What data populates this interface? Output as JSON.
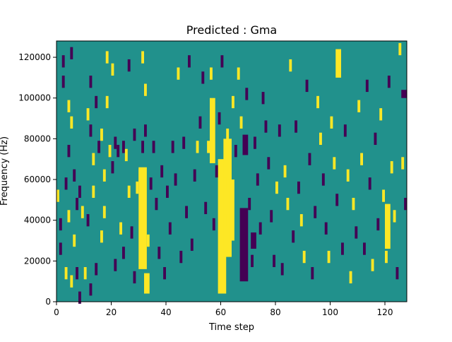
{
  "chart_data": {
    "type": "heatmap",
    "title": "Predicted : Gma",
    "xlabel": "Time step",
    "ylabel": "Frequency (Hz)",
    "xlim": [
      0,
      128
    ],
    "ylim": [
      0,
      128000
    ],
    "x_ticks": [
      0,
      20,
      40,
      60,
      80,
      100,
      120
    ],
    "y_ticks": [
      0,
      20000,
      40000,
      60000,
      80000,
      100000,
      120000
    ],
    "x_tick_labels": [
      "0",
      "20",
      "40",
      "60",
      "80",
      "100",
      "120"
    ],
    "y_tick_labels": [
      "0",
      "20000",
      "40000",
      "60000",
      "80000",
      "100000",
      "120000"
    ],
    "colormap": "viridis",
    "background_value": 0,
    "values_legend": {
      "-1": "#440154",
      "0": "#21918c",
      "1": "#fde725"
    },
    "grid": false,
    "cells": [
      {
        "t": 0.5,
        "f": 52000,
        "v": 1
      },
      {
        "t": 1.5,
        "f": 38000,
        "v": -1
      },
      {
        "t": 1.5,
        "f": 26000,
        "v": -1
      },
      {
        "t": 2.5,
        "f": 118000,
        "v": -1
      },
      {
        "t": 2.5,
        "f": 108000,
        "v": -1
      },
      {
        "t": 3.5,
        "f": 58000,
        "v": -1
      },
      {
        "t": 3.5,
        "f": 14000,
        "v": 1
      },
      {
        "t": 4.5,
        "f": 96000,
        "v": 1
      },
      {
        "t": 4.5,
        "f": 74000,
        "v": -1
      },
      {
        "t": 4.5,
        "f": 42000,
        "v": 1
      },
      {
        "t": 5.5,
        "f": 122000,
        "v": -1
      },
      {
        "t": 5.5,
        "f": 88000,
        "v": 1
      },
      {
        "t": 5.5,
        "f": 10000,
        "v": 1
      },
      {
        "t": 6.5,
        "f": 62000,
        "v": -1
      },
      {
        "t": 6.5,
        "f": 30000,
        "v": 1
      },
      {
        "t": 7.5,
        "f": 48000,
        "v": -1
      },
      {
        "t": 7.5,
        "f": 14000,
        "v": -1
      },
      {
        "t": 8.5,
        "f": 54000,
        "v": -1
      },
      {
        "t": 8.5,
        "f": 2000,
        "v": -1
      },
      {
        "t": 9.5,
        "f": 44000,
        "v": 1
      },
      {
        "t": 10.5,
        "f": 14000,
        "v": 1
      },
      {
        "t": 11.5,
        "f": 92000,
        "v": 1
      },
      {
        "t": 11.5,
        "f": 40000,
        "v": -1
      },
      {
        "t": 12.5,
        "f": 108000,
        "v": -1
      },
      {
        "t": 12.5,
        "f": 84000,
        "v": -1
      },
      {
        "t": 12.5,
        "f": 6000,
        "v": -1
      },
      {
        "t": 13.5,
        "f": 70000,
        "v": 1
      },
      {
        "t": 13.5,
        "f": 54000,
        "v": 1
      },
      {
        "t": 14.5,
        "f": 98000,
        "v": -1
      },
      {
        "t": 14.5,
        "f": 16000,
        "v": -1
      },
      {
        "t": 15.5,
        "f": 76000,
        "v": -1
      },
      {
        "t": 16.5,
        "f": 82000,
        "v": 1
      },
      {
        "t": 16.5,
        "f": 32000,
        "v": 1
      },
      {
        "t": 17.5,
        "f": 62000,
        "v": 1
      },
      {
        "t": 17.5,
        "f": 44000,
        "v": 1
      },
      {
        "t": 18.5,
        "f": 120000,
        "v": 1
      },
      {
        "t": 18.5,
        "f": 98000,
        "v": 1
      },
      {
        "t": 19.5,
        "f": 74000,
        "v": 1
      },
      {
        "t": 20.5,
        "f": 114000,
        "v": 1
      },
      {
        "t": 20.5,
        "f": 66000,
        "v": -1
      },
      {
        "t": 21.5,
        "f": 78000,
        "v": -1
      },
      {
        "t": 21.5,
        "f": 18000,
        "v": -1
      },
      {
        "t": 22.5,
        "f": 74000,
        "v": -1
      },
      {
        "t": 23.5,
        "f": 36000,
        "v": 1
      },
      {
        "t": 24.5,
        "f": 76000,
        "v": -1
      },
      {
        "t": 24.5,
        "f": 24000,
        "v": -1
      },
      {
        "t": 25.5,
        "f": 72000,
        "v": 1
      },
      {
        "t": 26.5,
        "f": 116000,
        "v": -1
      },
      {
        "t": 26.5,
        "f": 54000,
        "v": 1
      },
      {
        "t": 27.5,
        "f": 34000,
        "v": -1
      },
      {
        "t": 28.5,
        "f": 82000,
        "v": -1
      },
      {
        "t": 28.5,
        "f": 12000,
        "v": -1
      },
      {
        "t": 29.5,
        "f": 56000,
        "v": 1
      },
      {
        "t": 30.5,
        "f": 62000,
        "v": 1
      },
      {
        "t": 31.5,
        "f": 120000,
        "v": 1
      },
      {
        "t": 31.5,
        "f": 76000,
        "v": -1
      },
      {
        "t": 32.5,
        "f": 104000,
        "v": 1
      },
      {
        "t": 32.5,
        "f": 84000,
        "v": -1
      },
      {
        "t": 33.5,
        "f": 30000,
        "v": 1
      },
      {
        "t": 34.5,
        "f": 58000,
        "v": -1
      },
      {
        "t": 35.5,
        "f": 76000,
        "v": -1
      },
      {
        "t": 36.5,
        "f": 48000,
        "v": -1
      },
      {
        "t": 37.5,
        "f": 24000,
        "v": -1
      },
      {
        "t": 38.5,
        "f": 64000,
        "v": -1
      },
      {
        "t": 39.5,
        "f": 14000,
        "v": -1
      },
      {
        "t": 40.5,
        "f": 54000,
        "v": -1
      },
      {
        "t": 41.5,
        "f": 36000,
        "v": -1
      },
      {
        "t": 42.5,
        "f": 76000,
        "v": -1
      },
      {
        "t": 43.5,
        "f": 60000,
        "v": -1
      },
      {
        "t": 44.5,
        "f": 112000,
        "v": 1
      },
      {
        "t": 45.5,
        "f": 22000,
        "v": -1
      },
      {
        "t": 46.5,
        "f": 78000,
        "v": -1
      },
      {
        "t": 47.5,
        "f": 44000,
        "v": -1
      },
      {
        "t": 48.5,
        "f": 118000,
        "v": -1
      },
      {
        "t": 49.5,
        "f": 28000,
        "v": -1
      },
      {
        "t": 50.5,
        "f": 62000,
        "v": -1
      },
      {
        "t": 51.5,
        "f": 76000,
        "v": 1
      },
      {
        "t": 52.5,
        "f": 88000,
        "v": -1
      },
      {
        "t": 53.5,
        "f": 110000,
        "v": -1
      },
      {
        "t": 54.5,
        "f": 46000,
        "v": -1
      },
      {
        "t": 55.5,
        "f": 76000,
        "v": 1
      },
      {
        "t": 56.5,
        "f": 112000,
        "v": 1
      },
      {
        "t": 57.5,
        "f": 38000,
        "v": -1
      },
      {
        "t": 58.5,
        "f": 64000,
        "v": -1
      },
      {
        "t": 59.5,
        "f": 90000,
        "v": -1
      },
      {
        "t": 60.5,
        "f": 118000,
        "v": -1
      },
      {
        "t": 61.5,
        "f": 58000,
        "v": 1
      },
      {
        "t": 61.5,
        "f": 40000,
        "v": 1
      },
      {
        "t": 62.5,
        "f": 82000,
        "v": 1
      },
      {
        "t": 63.5,
        "f": 50000,
        "v": 1
      },
      {
        "t": 64.5,
        "f": 98000,
        "v": 1
      },
      {
        "t": 65.5,
        "f": 74000,
        "v": -1
      },
      {
        "t": 66.5,
        "f": 112000,
        "v": 1
      },
      {
        "t": 67.5,
        "f": 88000,
        "v": 1
      },
      {
        "t": 68.5,
        "f": 30000,
        "v": -1
      },
      {
        "t": 69.5,
        "f": 102000,
        "v": -1
      },
      {
        "t": 70.5,
        "f": 48000,
        "v": -1
      },
      {
        "t": 71.5,
        "f": 20000,
        "v": -1
      },
      {
        "t": 72.5,
        "f": 78000,
        "v": -1
      },
      {
        "t": 73.5,
        "f": 60000,
        "v": -1
      },
      {
        "t": 74.5,
        "f": 36000,
        "v": -1
      },
      {
        "t": 75.5,
        "f": 100000,
        "v": -1
      },
      {
        "t": 76.5,
        "f": 86000,
        "v": -1
      },
      {
        "t": 77.5,
        "f": 68000,
        "v": -1
      },
      {
        "t": 78.5,
        "f": 42000,
        "v": -1
      },
      {
        "t": 79.5,
        "f": 20000,
        "v": -1
      },
      {
        "t": 80.5,
        "f": 56000,
        "v": 1
      },
      {
        "t": 81.5,
        "f": 84000,
        "v": -1
      },
      {
        "t": 82.5,
        "f": 16000,
        "v": -1
      },
      {
        "t": 83.5,
        "f": 64000,
        "v": 1
      },
      {
        "t": 84.5,
        "f": 48000,
        "v": 1
      },
      {
        "t": 85.5,
        "f": 116000,
        "v": 1
      },
      {
        "t": 86.5,
        "f": 32000,
        "v": -1
      },
      {
        "t": 87.5,
        "f": 86000,
        "v": -1
      },
      {
        "t": 88.5,
        "f": 56000,
        "v": -1
      },
      {
        "t": 89.5,
        "f": 40000,
        "v": 1
      },
      {
        "t": 90.5,
        "f": 22000,
        "v": 1
      },
      {
        "t": 91.5,
        "f": 106000,
        "v": -1
      },
      {
        "t": 92.5,
        "f": 70000,
        "v": -1
      },
      {
        "t": 93.5,
        "f": 14000,
        "v": -1
      },
      {
        "t": 94.5,
        "f": 44000,
        "v": -1
      },
      {
        "t": 95.5,
        "f": 98000,
        "v": 1
      },
      {
        "t": 96.5,
        "f": 80000,
        "v": 1
      },
      {
        "t": 97.5,
        "f": 60000,
        "v": -1
      },
      {
        "t": 98.5,
        "f": 36000,
        "v": -1
      },
      {
        "t": 99.5,
        "f": 22000,
        "v": 1
      },
      {
        "t": 100.5,
        "f": 88000,
        "v": 1
      },
      {
        "t": 101.5,
        "f": 68000,
        "v": 1
      },
      {
        "t": 102.5,
        "f": 50000,
        "v": -1
      },
      {
        "t": 103.5,
        "f": 118000,
        "v": 1
      },
      {
        "t": 104.5,
        "f": 26000,
        "v": -1
      },
      {
        "t": 105.5,
        "f": 84000,
        "v": -1
      },
      {
        "t": 106.5,
        "f": 62000,
        "v": 1
      },
      {
        "t": 107.5,
        "f": 12000,
        "v": 1
      },
      {
        "t": 108.5,
        "f": 48000,
        "v": 1
      },
      {
        "t": 109.5,
        "f": 34000,
        "v": -1
      },
      {
        "t": 110.5,
        "f": 96000,
        "v": 1
      },
      {
        "t": 111.5,
        "f": 70000,
        "v": 1
      },
      {
        "t": 112.5,
        "f": 26000,
        "v": -1
      },
      {
        "t": 113.5,
        "f": 106000,
        "v": -1
      },
      {
        "t": 114.5,
        "f": 58000,
        "v": -1
      },
      {
        "t": 115.5,
        "f": 18000,
        "v": 1
      },
      {
        "t": 116.5,
        "f": 80000,
        "v": -1
      },
      {
        "t": 117.5,
        "f": 38000,
        "v": -1
      },
      {
        "t": 118.5,
        "f": 92000,
        "v": 1
      },
      {
        "t": 119.5,
        "f": 52000,
        "v": 1
      },
      {
        "t": 120.5,
        "f": 22000,
        "v": 1
      },
      {
        "t": 121.5,
        "f": 108000,
        "v": -1
      },
      {
        "t": 122.5,
        "f": 66000,
        "v": 1
      },
      {
        "t": 123.5,
        "f": 42000,
        "v": 1
      },
      {
        "t": 124.5,
        "f": 14000,
        "v": -1
      },
      {
        "t": 125.5,
        "f": 124000,
        "v": 1
      },
      {
        "t": 126.5,
        "f": 68000,
        "v": 1
      },
      {
        "t": 127.5,
        "f": 48000,
        "v": -1
      }
    ],
    "bands": [
      {
        "t0": 30,
        "t1": 33,
        "f0": 16000,
        "f1": 66000,
        "v": 1
      },
      {
        "t0": 32,
        "t1": 34,
        "f0": 4000,
        "f1": 14000,
        "v": 1
      },
      {
        "t0": 56,
        "t1": 58,
        "f0": 68000,
        "f1": 100000,
        "v": 1
      },
      {
        "t0": 59,
        "t1": 62,
        "f0": 4000,
        "f1": 70000,
        "v": 1
      },
      {
        "t0": 61,
        "t1": 64,
        "f0": 22000,
        "f1": 80000,
        "v": 1
      },
      {
        "t0": 63,
        "t1": 65,
        "f0": 30000,
        "f1": 60000,
        "v": 1
      },
      {
        "t0": 67,
        "t1": 70,
        "f0": 10000,
        "f1": 46000,
        "v": -1
      },
      {
        "t0": 68,
        "t1": 70,
        "f0": 72000,
        "f1": 82000,
        "v": -1
      },
      {
        "t0": 71,
        "t1": 73,
        "f0": 26000,
        "f1": 34000,
        "v": -1
      },
      {
        "t0": 102,
        "t1": 104,
        "f0": 110000,
        "f1": 124000,
        "v": 1
      },
      {
        "t0": 120,
        "t1": 122,
        "f0": 26000,
        "f1": 48000,
        "v": 1
      },
      {
        "t0": 126,
        "t1": 128,
        "f0": 100000,
        "f1": 104000,
        "v": -1
      }
    ]
  }
}
